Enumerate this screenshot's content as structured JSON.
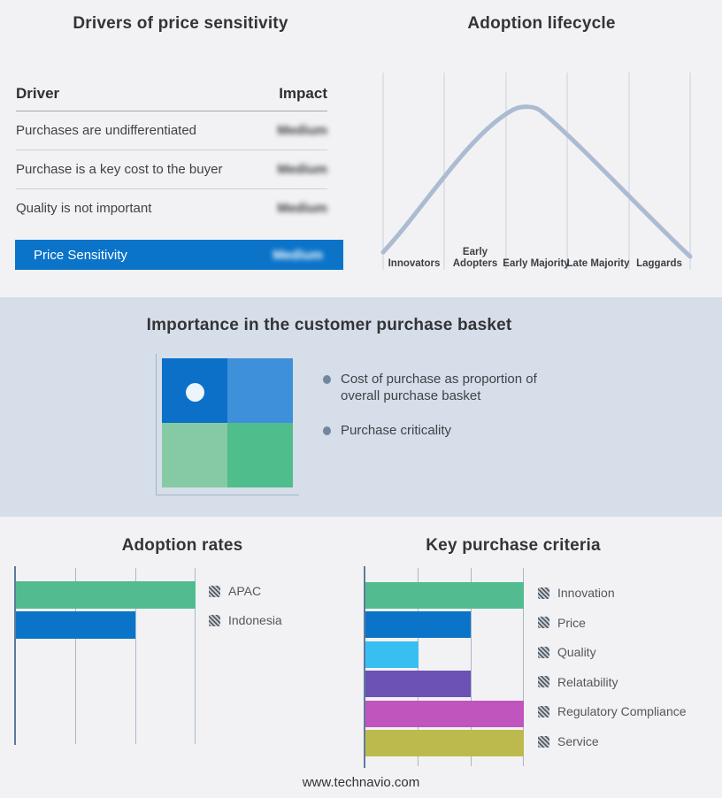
{
  "page": {
    "background": "#f2f2f4",
    "band_background": "#d5dee9",
    "accent_blue": "#0b74c9",
    "footer": "www.technavio.com"
  },
  "basket_panel": {
    "title": "Importance in the customer purchase basket",
    "bullets": [
      "Cost of purchase as proportion of overall purchase basket",
      "Purchase criticality"
    ],
    "quadrant_colors": {
      "top_left": "#0c70c8",
      "top_right": "#3e90da",
      "bottom_left": "#85caa4",
      "bottom_right": "#50bd8c"
    },
    "marker": {
      "quadrant": "top_left",
      "color": "#ecf5fb"
    }
  },
  "chart_data": [
    {
      "type": "table",
      "title": "Drivers of price sensitivity",
      "columns": [
        "Driver",
        "Impact"
      ],
      "rows": [
        [
          "Purchases are undifferentiated",
          "Medium"
        ],
        [
          "Purchase is a key cost to the buyer",
          "Medium"
        ],
        [
          "Quality is not important",
          "Medium"
        ],
        [
          "Price Sensitivity",
          "Medium"
        ]
      ],
      "note": "Impact values appear blurred in source; last row highlighted on blue band"
    },
    {
      "type": "line",
      "title": "Adoption lifecycle",
      "categories": [
        "Innovators",
        "Early Adopters",
        "Early Majority",
        "Late Majority",
        "Laggards"
      ],
      "shape": "bell curve peaking over Early Majority",
      "curve_color": "#abbcd2",
      "gridlines": true,
      "tick_labels": "category names only, no numeric axis"
    },
    {
      "type": "bar",
      "title": "Adoption rates",
      "orientation": "horizontal",
      "categories": [
        "APAC",
        "Indonesia"
      ],
      "values": [
        3,
        2
      ],
      "colors": [
        "#52bc90",
        "#0b74c9"
      ],
      "xlim": [
        0,
        3
      ],
      "tick_labels": "none (unlabeled gridlines)",
      "legend_position": "right"
    },
    {
      "type": "bar",
      "title": "Key purchase criteria",
      "orientation": "horizontal",
      "categories": [
        "Innovation",
        "Price",
        "Quality",
        "Relatability",
        "Regulatory Compliance",
        "Service"
      ],
      "values": [
        3,
        2,
        1,
        2,
        3,
        3
      ],
      "colors": [
        "#52bc90",
        "#0b74c9",
        "#38bff2",
        "#6c52b4",
        "#c055be",
        "#bcba4d"
      ],
      "xlim": [
        0,
        3
      ],
      "tick_labels": "none (unlabeled gridlines)",
      "legend_position": "right"
    }
  ]
}
